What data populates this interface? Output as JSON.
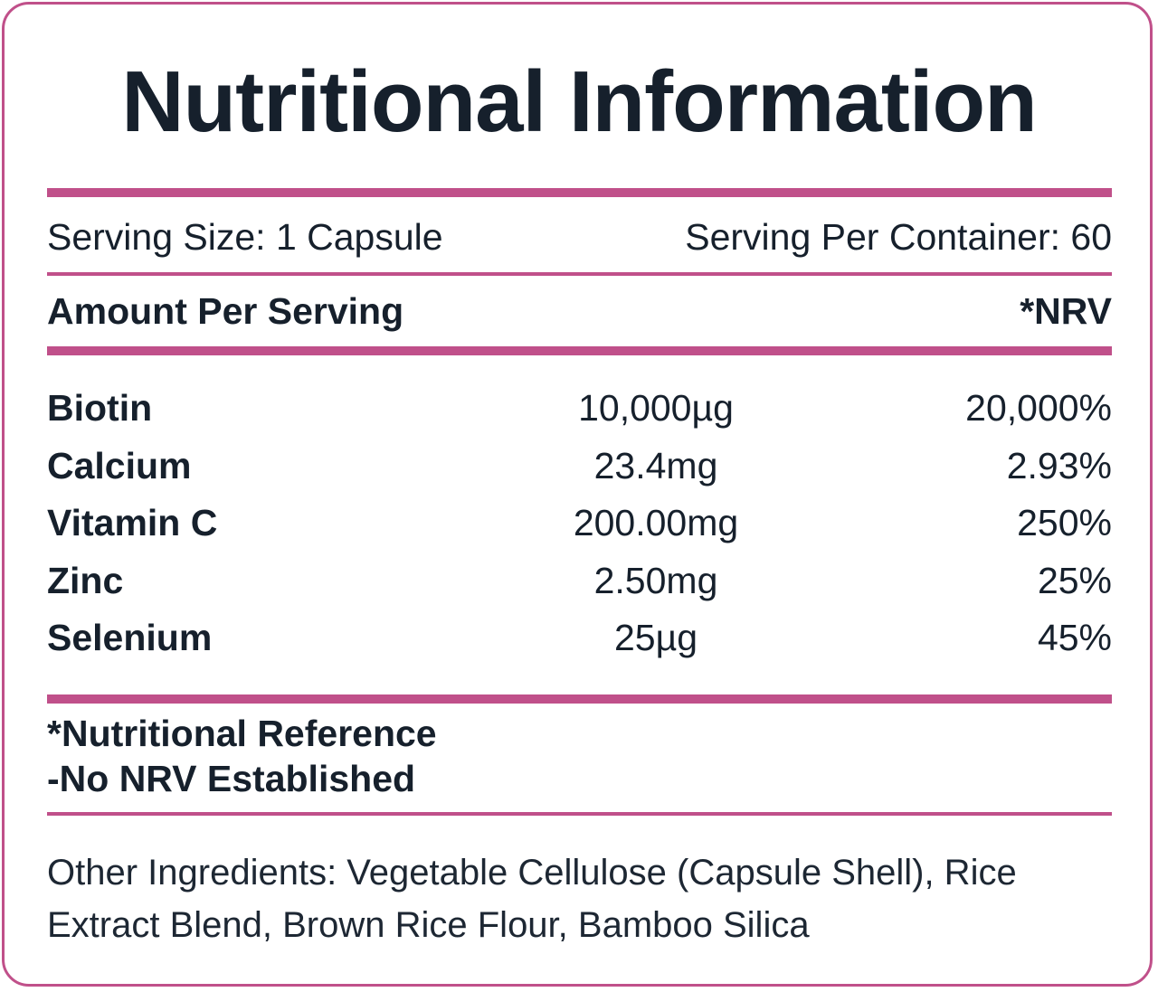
{
  "title": "Nutritional Information",
  "serving": {
    "size": "Serving Size: 1 Capsule",
    "per_container": "Serving Per Container: 60"
  },
  "header": {
    "amount_label": "Amount Per Serving",
    "nrv_label": "*NRV"
  },
  "nutrients": [
    {
      "name": "Biotin",
      "amount": "10,000µg",
      "nrv": "20,000%"
    },
    {
      "name": "Calcium",
      "amount": "23.4mg",
      "nrv": "2.93%"
    },
    {
      "name": "Vitamin C",
      "amount": "200.00mg",
      "nrv": "250%"
    },
    {
      "name": "Zinc",
      "amount": "2.50mg",
      "nrv": "25%"
    },
    {
      "name": "Selenium",
      "amount": "25µg",
      "nrv": "45%"
    }
  ],
  "footnotes": {
    "line1": "*Nutritional Reference",
    "line2": "-No NRV Established"
  },
  "ingredients": "Other Ingredients: Vegetable Cellulose (Capsule Shell), Rice Extract Blend, Brown Rice Flour, Bamboo Silica",
  "colors": {
    "accent": "#c0508a",
    "text": "#16202c"
  }
}
